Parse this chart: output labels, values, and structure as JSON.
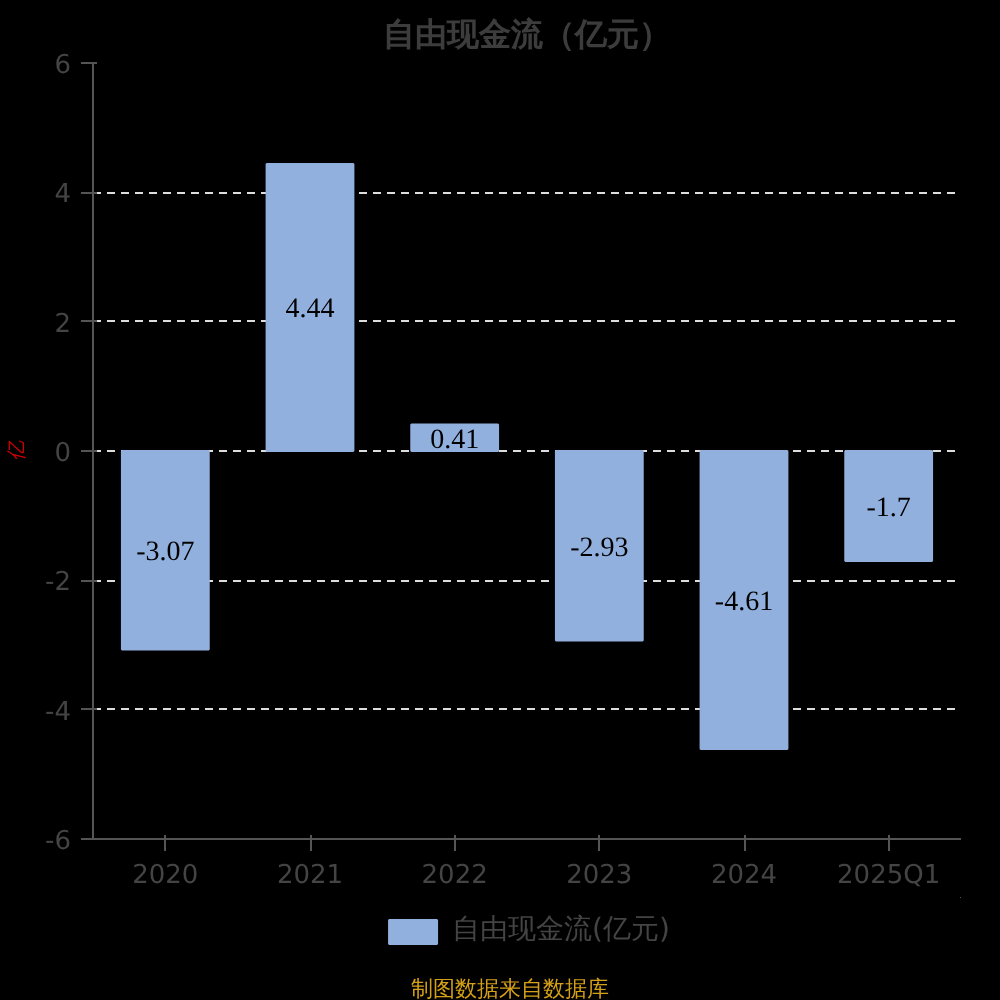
{
  "chart_data": {
    "type": "bar",
    "title": "自由现金流（亿元）",
    "ylabel": "亿",
    "categories": [
      "2020",
      "2021",
      "2022",
      "2023",
      "2024",
      "2025Q1"
    ],
    "series": [
      {
        "name": "自由现金流(亿元)",
        "color": "#91b0de",
        "values": [
          -3.07,
          4.44,
          0.41,
          -2.93,
          -4.61,
          -1.7
        ]
      }
    ],
    "ylim": [
      -6,
      6
    ],
    "yticks": [
      -6,
      -4,
      -2,
      0,
      2,
      4,
      6
    ],
    "grid": "y",
    "legend": "bottom",
    "data_labels": true,
    "annotations": [
      "制图数据来自数据库"
    ]
  }
}
